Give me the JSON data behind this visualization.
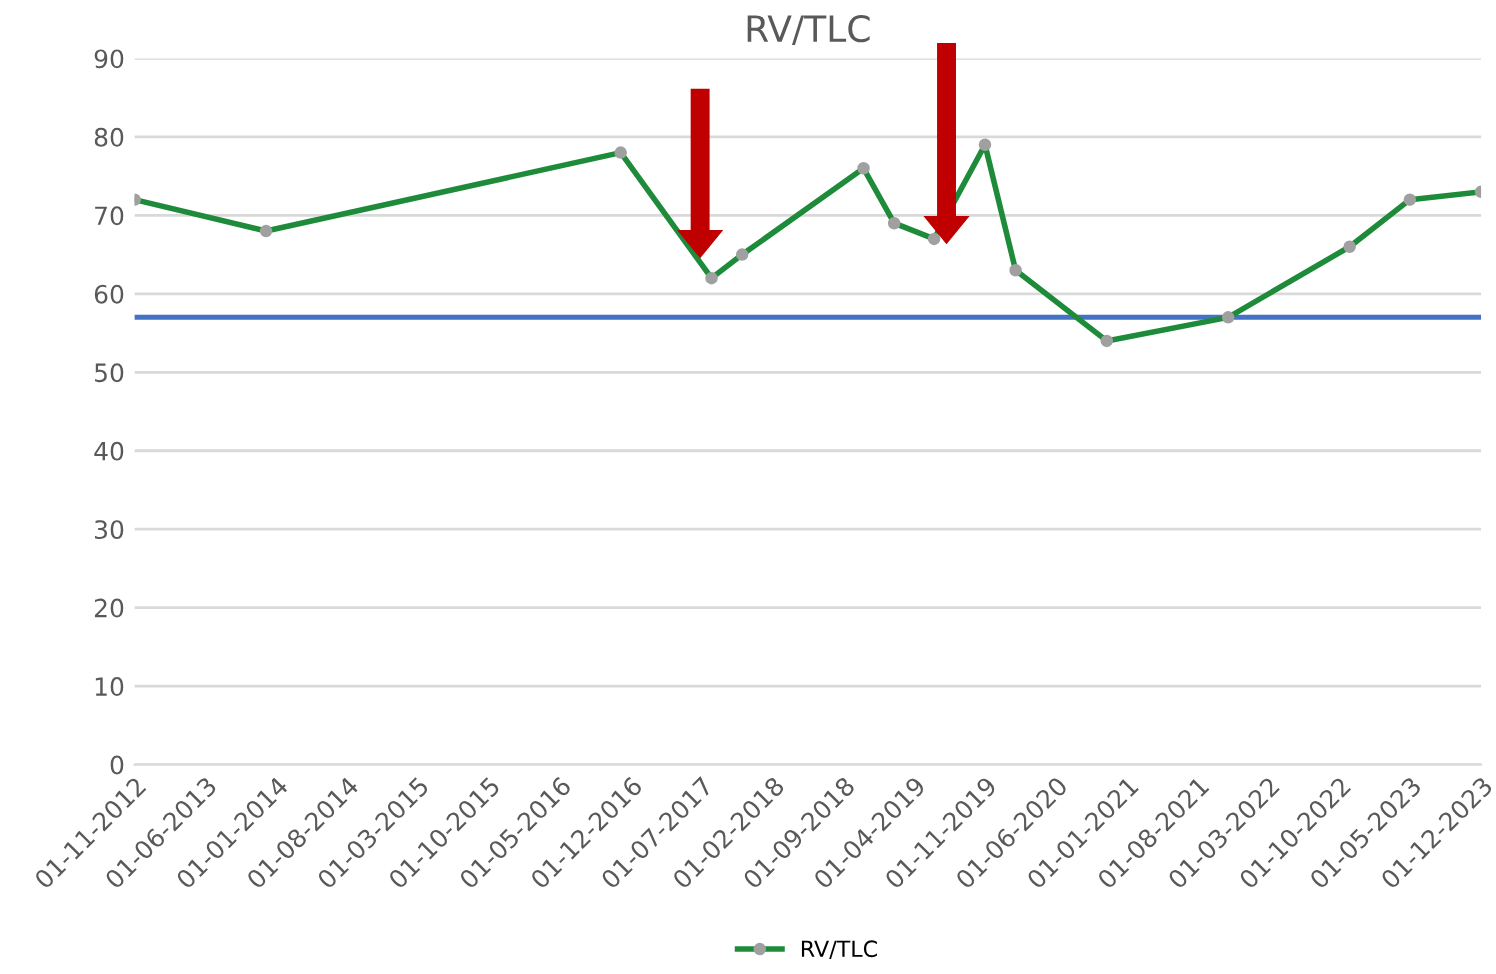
{
  "chart_data": {
    "type": "line",
    "title": "RV/TLC",
    "x": [
      "2012-11-01",
      "2013-12-01",
      "2016-11-01",
      "2017-08-01",
      "2017-11-01",
      "2018-11-01",
      "2019-02-01",
      "2019-06-01",
      "2019-11-01",
      "2020-02-01",
      "2020-11-01",
      "2021-11-01",
      "2022-11-01",
      "2023-05-01",
      "2023-12-01"
    ],
    "series": [
      {
        "name": "RV/TLC",
        "color": "#1e8b3a",
        "values": [
          72,
          68,
          78,
          62,
          65,
          76,
          69,
          67,
          79,
          63,
          54,
          57,
          66,
          72,
          73
        ]
      }
    ],
    "ref_lines": [
      {
        "axis": "y",
        "value": 57,
        "color": "#4472c4"
      }
    ],
    "xlim": [
      "2012-11-01",
      "2023-12-01"
    ],
    "xticks": [
      {
        "value": "2012-11-01",
        "label": "01-11-2012"
      },
      {
        "value": "2013-06-01",
        "label": "01-06-2013"
      },
      {
        "value": "2014-01-01",
        "label": "01-01-2014"
      },
      {
        "value": "2014-08-01",
        "label": "01-08-2014"
      },
      {
        "value": "2015-03-01",
        "label": "01-03-2015"
      },
      {
        "value": "2015-10-01",
        "label": "01-10-2015"
      },
      {
        "value": "2016-05-01",
        "label": "01-05-2016"
      },
      {
        "value": "2016-12-01",
        "label": "01-12-2016"
      },
      {
        "value": "2017-07-01",
        "label": "01-07-2017"
      },
      {
        "value": "2018-02-01",
        "label": "01-02-2018"
      },
      {
        "value": "2018-09-01",
        "label": "01-09-2018"
      },
      {
        "value": "2019-04-01",
        "label": "01-04-2019"
      },
      {
        "value": "2019-11-01",
        "label": "01-11-2019"
      },
      {
        "value": "2020-06-01",
        "label": "01-06-2020"
      },
      {
        "value": "2021-01-01",
        "label": "01-01-2021"
      },
      {
        "value": "2021-08-01",
        "label": "01-08-2021"
      },
      {
        "value": "2022-03-01",
        "label": "01-03-2022"
      },
      {
        "value": "2022-10-01",
        "label": "01-10-2022"
      },
      {
        "value": "2023-05-01",
        "label": "01-05-2023"
      },
      {
        "value": "2023-12-01",
        "label": "01-12-2023"
      }
    ],
    "ylim": [
      0,
      90
    ],
    "yticks": [
      0,
      10,
      20,
      30,
      40,
      50,
      60,
      70,
      80,
      90
    ],
    "grid": "y",
    "legend": "bottom",
    "marker": "circle",
    "line_style": "solid"
  }
}
